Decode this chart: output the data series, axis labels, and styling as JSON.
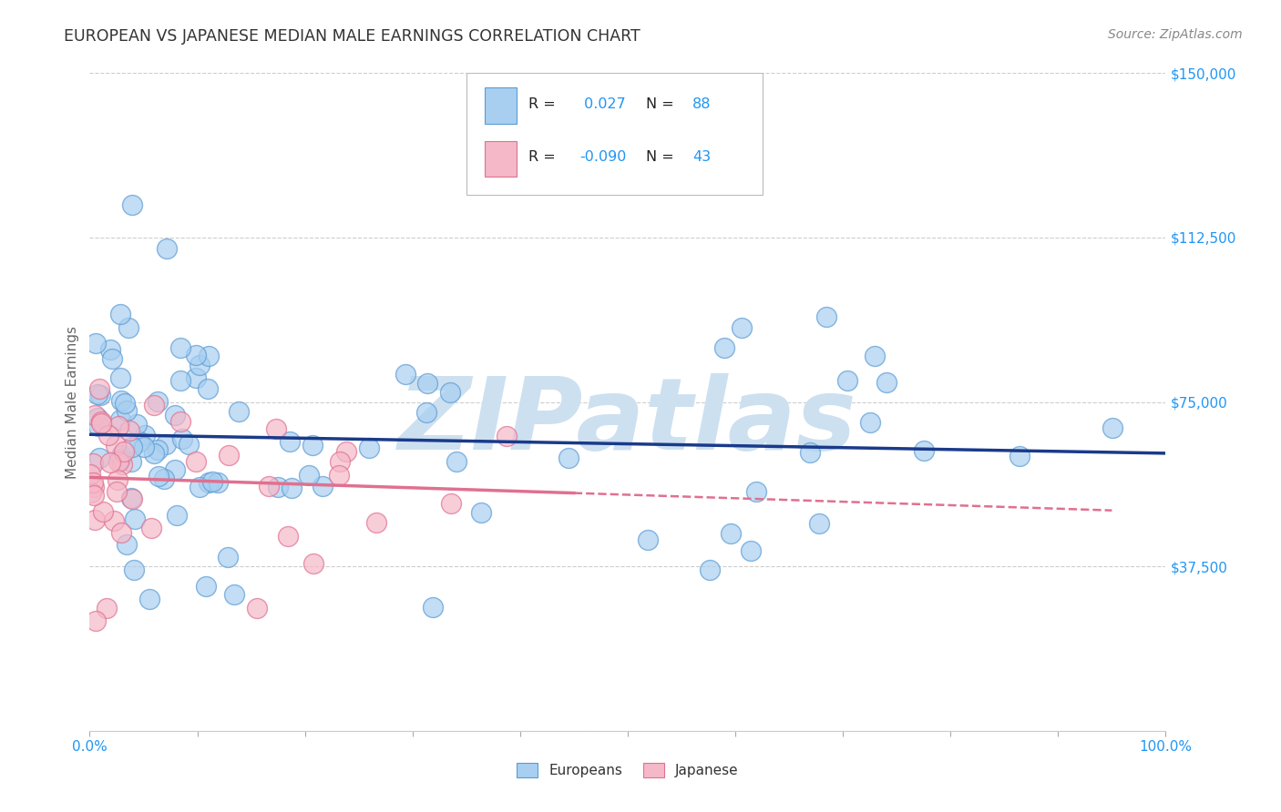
{
  "title": "EUROPEAN VS JAPANESE MEDIAN MALE EARNINGS CORRELATION CHART",
  "source_text": "Source: ZipAtlas.com",
  "ylabel": "Median Male Earnings",
  "xlim": [
    0,
    1.0
  ],
  "ylim": [
    0,
    150000
  ],
  "ytick_values": [
    0,
    37500,
    75000,
    112500,
    150000
  ],
  "ytick_labels": [
    "",
    "$37,500",
    "$75,000",
    "$112,500",
    "$150,000"
  ],
  "background_color": "#ffffff",
  "grid_color": "#c8c8c8",
  "title_color": "#333333",
  "title_fontsize": 13,
  "axis_label_color": "#666666",
  "tick_label_color": "#2196F3",
  "source_color": "#888888",
  "watermark_text": "ZIPatlas",
  "watermark_color": "#cde0f0",
  "legend_color": "#2196F3",
  "european_color": "#a8cff0",
  "european_edge": "#5b9bd5",
  "japanese_color": "#f5b8c8",
  "japanese_edge": "#e07090",
  "trend_eu_color": "#1a3a8a",
  "trend_jp_color": "#e07090"
}
